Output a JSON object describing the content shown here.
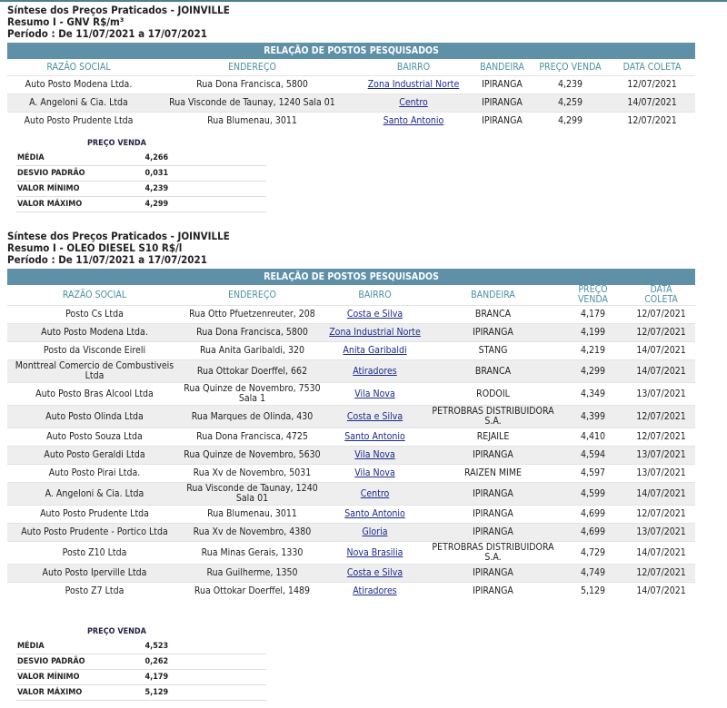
{
  "reports": [
    {
      "title": "Síntese dos Preços Praticados - JOINVILLE",
      "subtitle": "Resumo I - GNV R$/m³",
      "period": "Período : De 11/07/2021 a 17/07/2021",
      "table_caption": "RELAÇÃO DE POSTOS PESQUISADOS",
      "columns": [
        "RAZÃO SOCIAL",
        "ENDEREÇO",
        "BAIRRO",
        "BANDEIRA",
        "PREÇO VENDA",
        "DATA COLETA"
      ],
      "rows": [
        [
          "Auto Posto Modena Ltda.",
          "Rua Dona Francisca, 5800",
          "Zona Industrial Norte",
          "IPIRANGA",
          "4,239",
          "12/07/2021"
        ],
        [
          "A. Angeloni & Cia. Ltda",
          "Rua Visconde de Taunay, 1240 Sala 01",
          "Centro",
          "IPIRANGA",
          "4,259",
          "14/07/2021"
        ],
        [
          "Auto Posto Prudente Ltda",
          "Rua Blumenau, 3011",
          "Santo Antonio",
          "IPIRANGA",
          "4,299",
          "12/07/2021"
        ]
      ],
      "stats": {
        "header": "PREÇO VENDA",
        "items": [
          [
            "MÉDIA",
            "4,266"
          ],
          [
            "DESVIO PADRÃO",
            "0,031"
          ],
          [
            "VALOR MÍNIMO",
            "4,239"
          ],
          [
            "VALOR MÁXIMO",
            "4,299"
          ]
        ]
      }
    },
    {
      "title": "Síntese dos Preços Praticados - JOINVILLE",
      "subtitle": "Resumo I - OLEO DIESEL S10 R$/l",
      "period": "Período : De 11/07/2021 a 17/07/2021",
      "table_caption": "RELAÇÃO DE POSTOS PESQUISADOS",
      "columns": [
        "RAZÃO SOCIAL",
        "ENDEREÇO",
        "BAIRRO",
        "BANDEIRA",
        "PREÇO VENDA",
        "DATA COLETA"
      ],
      "rows": [
        [
          "Posto Cs Ltda",
          "Rua Otto Pfuetzenreuter, 208",
          "Costa e Silva",
          "BRANCA",
          "4,179",
          "12/07/2021"
        ],
        [
          "Auto Posto Modena Ltda.",
          "Rua Dona Francisca, 5800",
          "Zona Industrial Norte",
          "IPIRANGA",
          "4,199",
          "12/07/2021"
        ],
        [
          "Posto da Visconde Eireli",
          "Rua Anita Garibaldi, 320",
          "Anita Garibaldi",
          "STANG",
          "4,219",
          "14/07/2021"
        ],
        [
          "Monttreal Comercio de Combustiveis Ltda",
          "Rua Ottokar Doerffel, 662",
          "Atiradores",
          "BRANCA",
          "4,299",
          "14/07/2021"
        ],
        [
          "Auto Posto Bras Alcool Ltda",
          "Rua Quinze de Novembro, 7530 Sala 1",
          "Vila Nova",
          "RODOIL",
          "4,349",
          "13/07/2021"
        ],
        [
          "Auto Posto Olinda Ltda",
          "Rua Marques de Olinda, 430",
          "Costa e Silva",
          "PETROBRAS DISTRIBUIDORA S.A.",
          "4,399",
          "12/07/2021"
        ],
        [
          "Auto Posto Souza Ltda",
          "Rua Dona Francisca, 4725",
          "Santo Antonio",
          "REJAILE",
          "4,410",
          "12/07/2021"
        ],
        [
          "Auto Posto Geraldi Ltda",
          "Rua Quinze de Novembro, 5630",
          "Vila Nova",
          "IPIRANGA",
          "4,594",
          "13/07/2021"
        ],
        [
          "Auto Posto Pirai Ltda.",
          "Rua Xv de Novembro, 5031",
          "Vila Nova",
          "RAIZEN MIME",
          "4,597",
          "13/07/2021"
        ],
        [
          "A. Angeloni & Cia. Ltda",
          "Rua Visconde de Taunay, 1240 Sala 01",
          "Centro",
          "IPIRANGA",
          "4,599",
          "14/07/2021"
        ],
        [
          "Auto Posto Prudente Ltda",
          "Rua Blumenau, 3011",
          "Santo Antonio",
          "IPIRANGA",
          "4,699",
          "12/07/2021"
        ],
        [
          "Auto Posto Prudente - Portico Ltda",
          "Rua Xv de Novembro, 4380",
          "Gloria",
          "IPIRANGA",
          "4,699",
          "13/07/2021"
        ],
        [
          "Posto Z10 Ltda",
          "Rua Minas Gerais, 1330",
          "Nova Brasilia",
          "PETROBRAS DISTRIBUIDORA S.A.",
          "4,729",
          "14/07/2021"
        ],
        [
          "Auto Posto Iperville Ltda",
          "Rua Guilherme, 1350",
          "Costa e Silva",
          "IPIRANGA",
          "4,749",
          "12/07/2021"
        ],
        [
          "Posto Z7 Ltda",
          "Rua Ottokar Doerffel, 1489",
          "Atiradores",
          "IPIRANGA",
          "5,129",
          "14/07/2021"
        ]
      ],
      "stats": {
        "header": "PREÇO VENDA",
        "items": [
          [
            "MÉDIA",
            "4,523"
          ],
          [
            "DESVIO PADRÃO",
            "0,262"
          ],
          [
            "VALOR MÍNIMO",
            "4,179"
          ],
          [
            "VALOR MÁXIMO",
            "5,129"
          ]
        ]
      }
    }
  ]
}
